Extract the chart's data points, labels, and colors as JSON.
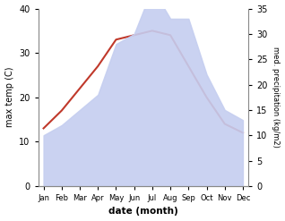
{
  "months": [
    "Jan",
    "Feb",
    "Mar",
    "Apr",
    "May",
    "Jun",
    "Jul",
    "Aug",
    "Sep",
    "Oct",
    "Nov",
    "Dec"
  ],
  "max_temp": [
    13,
    17,
    22,
    27,
    33,
    34,
    35,
    34,
    27,
    20,
    14,
    12
  ],
  "precipitation": [
    10,
    12,
    15,
    18,
    28,
    30,
    39,
    33,
    33,
    22,
    15,
    13
  ],
  "temp_color": "#c0392b",
  "precip_fill_color": "#c5cef0",
  "temp_ylim": [
    0,
    40
  ],
  "temp_yticks": [
    0,
    10,
    20,
    30,
    40
  ],
  "precip_ylim": [
    0,
    35
  ],
  "precip_yticks": [
    0,
    5,
    10,
    15,
    20,
    25,
    30,
    35
  ],
  "ylabel_left": "max temp (C)",
  "ylabel_right": "med. precipitation (kg/m2)",
  "xlabel": "date (month)",
  "bg_color": "#ffffff",
  "plot_bg": "#ffffff"
}
